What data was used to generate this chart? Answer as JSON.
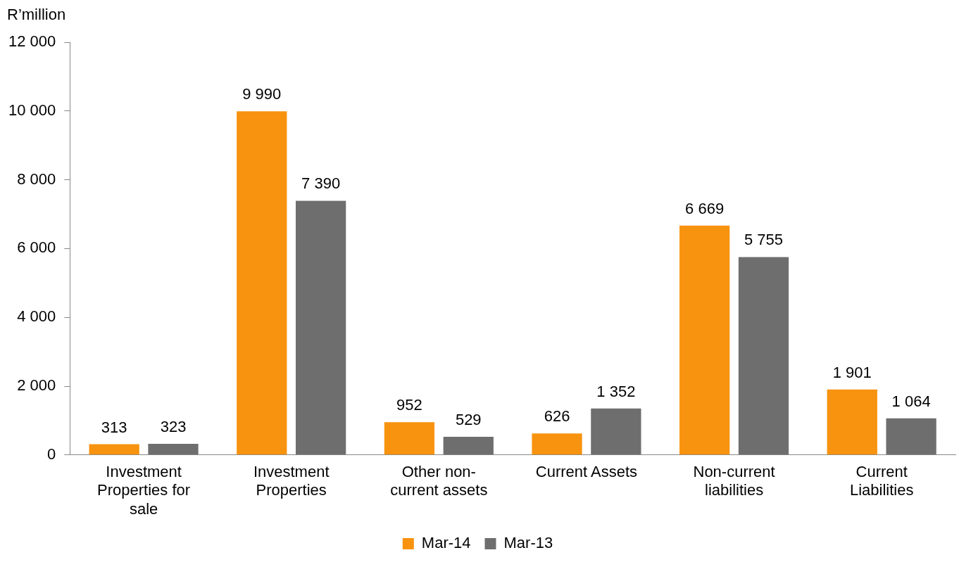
{
  "chart_data": {
    "type": "bar",
    "ylabel": "R’million",
    "categories": [
      "Investment Properties for sale",
      "Investment Properties",
      "Other non-current assets",
      "Current Assets",
      "Non-current liabilities",
      "Current Liabilities"
    ],
    "series": [
      {
        "name": "Mar-14",
        "color": "#f7930f",
        "values": [
          313,
          9990,
          952,
          626,
          6669,
          1901
        ],
        "value_labels": [
          "313",
          "9 990",
          "952",
          "626",
          "6 669",
          "1 901"
        ]
      },
      {
        "name": "Mar-13",
        "color": "#6e6e6e",
        "values": [
          323,
          7390,
          529,
          1352,
          5755,
          1064
        ],
        "value_labels": [
          "323",
          "7 390",
          "529",
          "1 352",
          "5 755",
          "1 064"
        ]
      }
    ],
    "ylim": [
      0,
      12000
    ],
    "yticks": [
      {
        "value": 0,
        "label": "0"
      },
      {
        "value": 2000,
        "label": "2 000"
      },
      {
        "value": 4000,
        "label": "4 000"
      },
      {
        "value": 6000,
        "label": "6 000"
      },
      {
        "value": 8000,
        "label": "8 000"
      },
      {
        "value": 10000,
        "label": "10 000"
      },
      {
        "value": 12000,
        "label": "12 000"
      }
    ],
    "grid": false,
    "legend": "bottom"
  }
}
